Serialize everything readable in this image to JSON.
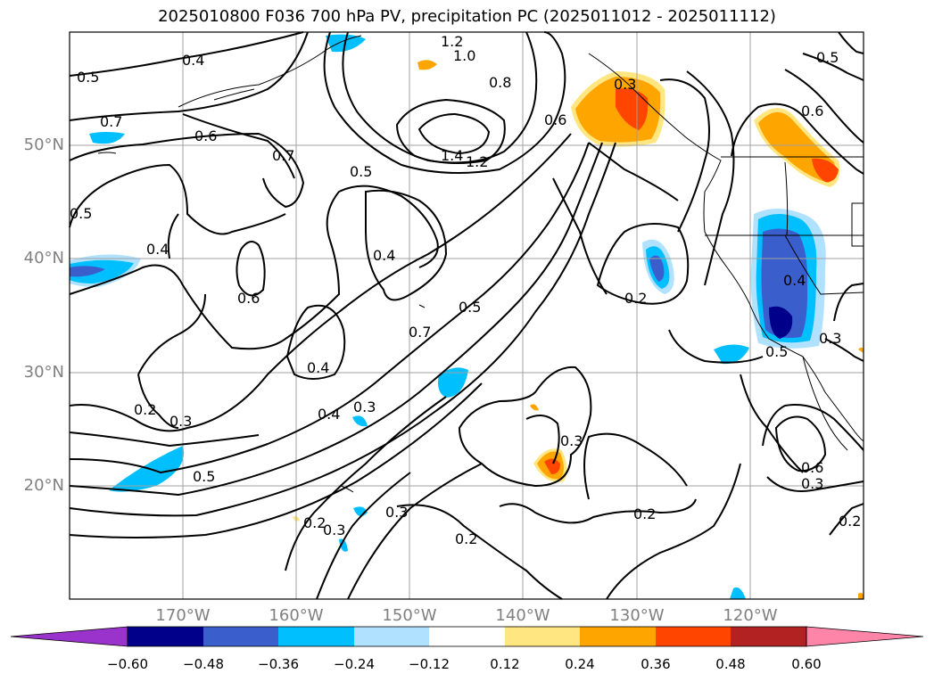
{
  "title": "2025010800 F036 700 hPa PV, precipitation PC (2025011012 - 2025011112)",
  "lat_labels": [
    "50°N",
    "40°N",
    "30°N",
    "20°N"
  ],
  "lon_labels": [
    "170°W",
    "160°W",
    "150°W",
    "140°W",
    "130°W",
    "120°W"
  ],
  "contour_labels": [
    "0.4",
    "0.5",
    "0.7",
    "0.6",
    "0.7",
    "0.5",
    "0.5",
    "1.2",
    "1.0",
    "0.8",
    "1.4",
    "1.2",
    "0.4",
    "0.6",
    "0.4",
    "0.7",
    "0.5",
    "0.4",
    "0.4",
    "0.3",
    "0.2",
    "0.3",
    "0.5",
    "0.2",
    "0.3",
    "0.3",
    "0.3",
    "0.2",
    "0.2",
    "0.6",
    "0.3",
    "0.2",
    "0.6",
    "0.4",
    "0.3",
    "0.6",
    "0.5",
    "0.2",
    "0.5",
    "0.3"
  ],
  "colorbar": {
    "ticks": [
      "−0.60",
      "−0.48",
      "−0.36",
      "−0.24",
      "−0.12",
      "0.12",
      "0.24",
      "0.36",
      "0.48",
      "0.60"
    ],
    "colors": [
      "#9933cc",
      "#00008b",
      "#3a5fcd",
      "#00bfff",
      "#b0e2ff",
      "#ffffff",
      "#ffe680",
      "#ffa500",
      "#ff4500",
      "#b22222",
      "#ff85a8"
    ]
  }
}
